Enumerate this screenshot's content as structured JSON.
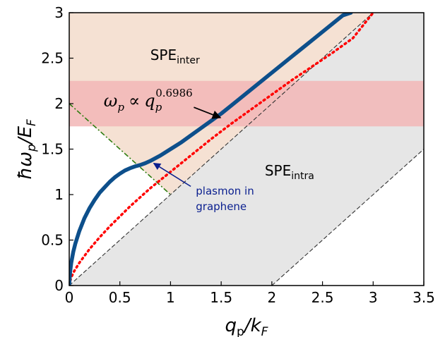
{
  "chart_data": {
    "type": "line",
    "x_label": {
      "base": "q",
      "sub": "p",
      "sep": "/k",
      "sub2": "F"
    },
    "y_label": {
      "prefix": "ħω",
      "sub": "p",
      "sep": "/E",
      "sub2": "F"
    },
    "xlim": [
      0,
      3.5
    ],
    "ylim": [
      0,
      3
    ],
    "x_ticks": [
      "0",
      "0.5",
      "1",
      "1.5",
      "2",
      "2.5",
      "3",
      "3.5"
    ],
    "y_ticks": [
      "0",
      "0.5",
      "1",
      "1.5",
      "2",
      "2.5",
      "3"
    ],
    "x_tick_values": [
      0,
      0.5,
      1,
      1.5,
      2,
      2.5,
      3,
      3.5
    ],
    "y_tick_values": [
      0,
      0.5,
      1,
      1.5,
      2,
      2.5,
      3
    ],
    "grid": false,
    "regions": {
      "spe_inter": {
        "label_main": "SPE",
        "label_sub": "inter",
        "color": "#f5e1d3",
        "boundary": "omega = q + 2 (lower), omega = 2 - q to q = 1"
      },
      "spe_intra": {
        "label_main": "SPE",
        "label_sub": "intra",
        "color": "#e6e6e6",
        "boundary": "0 <= omega <= q, and omega >= q - 2"
      },
      "band": {
        "ymin": 1.75,
        "ymax": 2.25,
        "color": "#f2b6b6"
      }
    },
    "series": [
      {
        "name": "plasmon in graphene",
        "style": "solid-thick",
        "color": "#0d4f8b",
        "x": [
          0,
          0.005,
          0.01,
          0.02,
          0.04,
          0.06,
          0.1,
          0.15,
          0.2,
          0.25,
          0.3,
          0.35,
          0.4,
          0.45,
          0.5,
          0.55,
          0.6,
          0.65,
          0.7,
          0.75,
          0.8,
          0.85,
          0.9,
          1.0,
          1.1,
          1.2,
          1.3,
          1.4,
          1.5,
          1.6,
          1.7,
          1.8,
          1.9,
          2.0,
          2.1,
          2.2,
          2.3,
          2.4,
          2.5,
          2.6,
          2.7,
          2.78
        ],
        "y": [
          0,
          0.1,
          0.16,
          0.25,
          0.37,
          0.46,
          0.6,
          0.74,
          0.85,
          0.94,
          1.02,
          1.08,
          1.14,
          1.19,
          1.23,
          1.265,
          1.29,
          1.31,
          1.325,
          1.345,
          1.37,
          1.4,
          1.43,
          1.5,
          1.57,
          1.65,
          1.73,
          1.81,
          1.89,
          1.98,
          2.07,
          2.16,
          2.25,
          2.34,
          2.43,
          2.52,
          2.61,
          2.7,
          2.79,
          2.88,
          2.97,
          3.0
        ]
      },
      {
        "name": "",
        "style": "dotted",
        "color": "#ff0000",
        "x": [
          0,
          0.01,
          0.02,
          0.05,
          0.1,
          0.2,
          0.3,
          0.4,
          0.5,
          0.6,
          0.7,
          0.8,
          0.9,
          1.0,
          1.2,
          1.4,
          1.6,
          1.8,
          2.0,
          2.2,
          2.4,
          2.6,
          2.8,
          3.0
        ],
        "y": [
          0,
          0.05,
          0.09,
          0.16,
          0.25,
          0.4,
          0.53,
          0.65,
          0.76,
          0.87,
          0.97,
          1.07,
          1.16,
          1.25,
          1.43,
          1.61,
          1.78,
          1.94,
          2.1,
          2.26,
          2.41,
          2.56,
          2.72,
          3.0
        ]
      },
      {
        "name": "",
        "style": "dashdot",
        "color": "#2e7d10",
        "x": [
          0,
          1
        ],
        "y": [
          2,
          1
        ]
      },
      {
        "name": "",
        "style": "dashed",
        "color": "#333333",
        "x": [
          0,
          3
        ],
        "y": [
          0,
          3
        ]
      },
      {
        "name": "",
        "style": "dashed",
        "color": "#333333",
        "x": [
          2,
          3.5
        ],
        "y": [
          0,
          1.5
        ]
      }
    ],
    "annotations": {
      "formula": {
        "lhs": "ω",
        "lhs_sub": "p",
        "op": "∝",
        "rhs": "q",
        "rhs_sub": "p",
        "rhs_sup": "0.6986",
        "arrow_to": [
          1.5,
          1.83
        ]
      },
      "plasmon": {
        "lines": [
          "plasmon in",
          "graphene"
        ],
        "arrow_to": [
          0.82,
          1.36
        ]
      }
    }
  }
}
